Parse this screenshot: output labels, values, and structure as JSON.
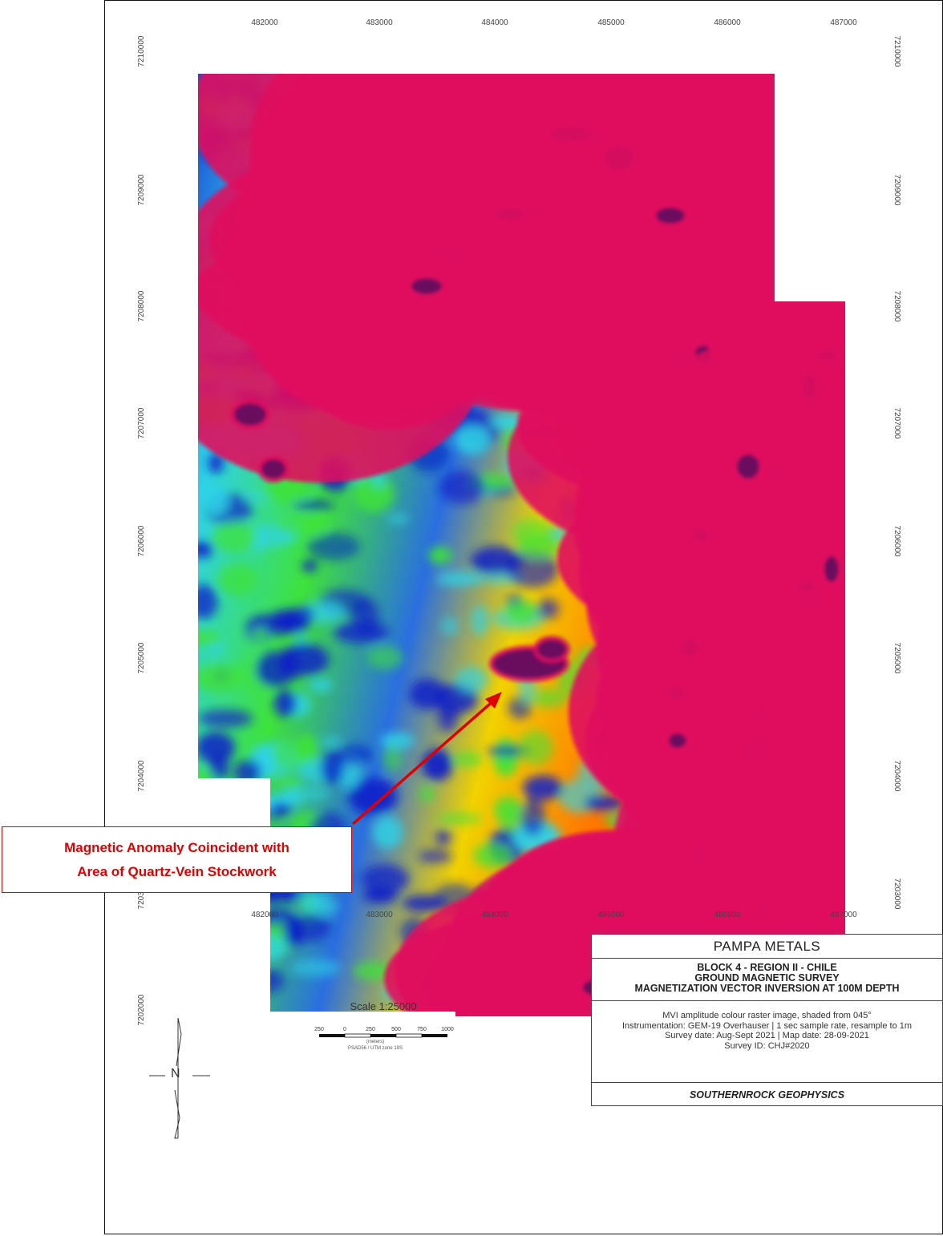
{
  "map": {
    "x_ticks": [
      "482000",
      "483000",
      "484000",
      "485000",
      "486000",
      "487000"
    ],
    "y_ticks": [
      "7210000",
      "7209000",
      "7208000",
      "7207000",
      "7206000",
      "7205000",
      "7204000",
      "7203000",
      "7202000"
    ],
    "colors": {
      "frame": "#111111",
      "low": "#0a1fc8",
      "mid_low": "#2fd2e6",
      "mid": "#3fe23a",
      "mid_high": "#f2d200",
      "high": "#ff5a00",
      "peak": "#e0105e",
      "anomaly": "#6a0a5e",
      "callout": "#e00000"
    }
  },
  "callout": {
    "line1": "Magnetic Anomaly Coincident with",
    "line2": "Area of Quartz-Vein Stockwork"
  },
  "north_arrow": {
    "label": "N"
  },
  "scale": {
    "title": "Scale 1:25000",
    "ticks": [
      "250",
      "0",
      "250",
      "500",
      "750",
      "1000"
    ],
    "units": "(meters)",
    "datum": "PSAD56 / UTM zone 19S"
  },
  "title_block": {
    "company": "PAMPA METALS",
    "title_lines": [
      "BLOCK 4 - REGION II - CHILE",
      "GROUND MAGNETIC SURVEY",
      "MAGNETIZATION VECTOR INVERSION AT 100M DEPTH"
    ],
    "notes": [
      "MVI amplitude colour raster image, shaded from 045°",
      "Instrumentation: GEM-19 Overhauser | 1 sec sample rate, resample to 1m",
      "Survey date: Aug-Sept 2021 | Map date: 28-09-2021",
      "Survey ID: CHJ#2020"
    ],
    "footer": "SOUTHERNROCK GEOPHYSICS"
  }
}
